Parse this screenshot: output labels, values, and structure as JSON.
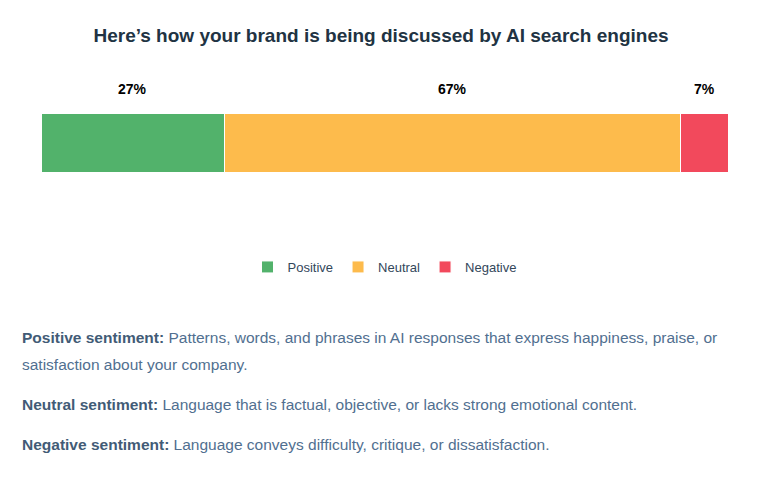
{
  "chart_data": {
    "type": "bar",
    "title": "Here’s how your brand is being discussed by AI search engines",
    "orientation": "horizontal",
    "stacked": true,
    "data_labels": true,
    "tick_labels": false,
    "legend": "bottom",
    "grid": false,
    "categories": [
      null
    ],
    "xlim": [
      0,
      101
    ],
    "series": [
      {
        "name": "Positive",
        "color": "#52b26b",
        "values": [
          27
        ],
        "value_labels": [
          "27%"
        ]
      },
      {
        "name": "Neutral",
        "color": "#fdbb4c",
        "values": [
          67
        ],
        "value_labels": [
          "67%"
        ]
      },
      {
        "name": "Negative",
        "color": "#f2495c",
        "values": [
          7
        ],
        "value_labels": [
          "7%"
        ]
      }
    ]
  },
  "definitions": [
    {
      "term": "Positive sentiment:",
      "text": "Patterns, words, and phrases in AI responses that express happiness, praise, or satisfaction about your company."
    },
    {
      "term": "Neutral sentiment:",
      "text": "Language that is factual, objective, or lacks strong emotional content."
    },
    {
      "term": "Negative sentiment:",
      "text": "Language conveys difficulty, critique, or dissatisfaction."
    }
  ]
}
